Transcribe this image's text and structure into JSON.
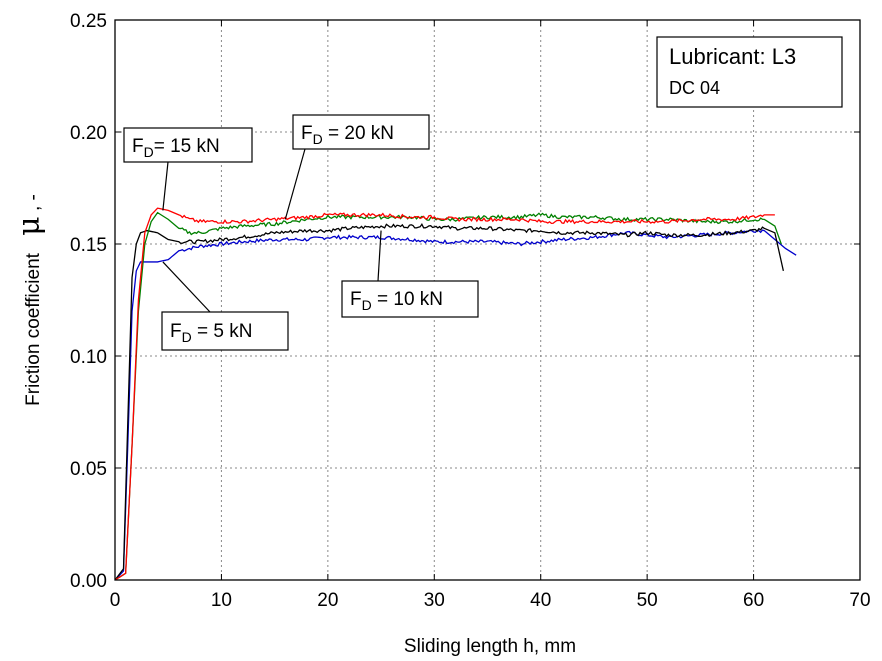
{
  "chart_data": {
    "type": "line",
    "xlabel": "Sliding length h, mm",
    "ylabel_text": "Friction coefficient",
    "ylabel_symbol": "μ",
    "ylabel_unit": ", -",
    "xlim": [
      0,
      70
    ],
    "ylim": [
      0,
      0.25
    ],
    "xticks": [
      "0",
      "10",
      "20",
      "30",
      "40",
      "50",
      "60",
      "70"
    ],
    "yticks": [
      "0.00",
      "0.05",
      "0.10",
      "0.15",
      "0.20",
      "0.25"
    ],
    "grid": true,
    "legend_box": {
      "title": "Lubricant: L3",
      "subtitle": "DC 04",
      "position": "top-right"
    },
    "series": [
      {
        "name": "FD = 5 kN",
        "color": "#0000cc",
        "x": [
          0,
          0.8,
          1.2,
          1.6,
          2.0,
          2.4,
          3,
          4,
          5,
          6,
          8,
          10,
          12,
          15,
          18,
          20,
          22,
          25,
          28,
          30,
          32,
          35,
          38,
          40,
          42,
          45,
          48,
          50,
          52,
          55,
          58,
          60,
          61,
          62,
          63,
          64
        ],
        "y": [
          0,
          0.004,
          0.06,
          0.12,
          0.138,
          0.142,
          0.142,
          0.142,
          0.143,
          0.147,
          0.149,
          0.15,
          0.151,
          0.152,
          0.152,
          0.153,
          0.153,
          0.153,
          0.152,
          0.151,
          0.151,
          0.151,
          0.15,
          0.151,
          0.152,
          0.153,
          0.155,
          0.154,
          0.153,
          0.154,
          0.155,
          0.156,
          0.156,
          0.152,
          0.148,
          0.145
        ]
      },
      {
        "name": "FD = 10 kN",
        "color": "#000000",
        "x": [
          0,
          0.8,
          1.2,
          1.6,
          2.0,
          2.4,
          3,
          4,
          5,
          6,
          8,
          10,
          12,
          15,
          18,
          20,
          22,
          25,
          28,
          30,
          32,
          35,
          38,
          40,
          42,
          45,
          48,
          50,
          52,
          55,
          58,
          60,
          61,
          62,
          62.8
        ],
        "y": [
          0,
          0.005,
          0.07,
          0.135,
          0.15,
          0.155,
          0.156,
          0.155,
          0.152,
          0.151,
          0.151,
          0.152,
          0.153,
          0.155,
          0.156,
          0.156,
          0.157,
          0.158,
          0.158,
          0.158,
          0.157,
          0.157,
          0.156,
          0.156,
          0.155,
          0.155,
          0.154,
          0.155,
          0.154,
          0.154,
          0.155,
          0.156,
          0.157,
          0.155,
          0.138
        ]
      },
      {
        "name": "FD = 15 kN",
        "color": "#008000",
        "x": [
          0,
          1.0,
          1.6,
          2.2,
          2.8,
          3.4,
          4,
          5,
          6,
          7,
          8,
          10,
          12,
          15,
          18,
          20,
          22,
          25,
          28,
          30,
          32,
          35,
          38,
          40,
          42,
          45,
          48,
          50,
          52,
          55,
          58,
          60,
          61,
          62,
          62.6
        ],
        "y": [
          0,
          0.003,
          0.06,
          0.12,
          0.15,
          0.16,
          0.164,
          0.161,
          0.157,
          0.155,
          0.155,
          0.157,
          0.158,
          0.159,
          0.161,
          0.162,
          0.162,
          0.162,
          0.162,
          0.161,
          0.161,
          0.162,
          0.162,
          0.163,
          0.162,
          0.162,
          0.161,
          0.161,
          0.161,
          0.16,
          0.16,
          0.161,
          0.161,
          0.158,
          0.15
        ]
      },
      {
        "name": "FD = 20 kN",
        "color": "#ff0000",
        "x": [
          0,
          1.0,
          1.6,
          2.2,
          2.8,
          3.4,
          4,
          5,
          6,
          7,
          8,
          10,
          12,
          15,
          18,
          20,
          22,
          25,
          28,
          30,
          32,
          35,
          38,
          40,
          42,
          45,
          48,
          50,
          52,
          55,
          58,
          60,
          61,
          62
        ],
        "y": [
          0,
          0.003,
          0.06,
          0.125,
          0.155,
          0.163,
          0.166,
          0.165,
          0.163,
          0.161,
          0.16,
          0.16,
          0.16,
          0.161,
          0.162,
          0.163,
          0.163,
          0.163,
          0.162,
          0.162,
          0.161,
          0.161,
          0.161,
          0.16,
          0.16,
          0.16,
          0.16,
          0.16,
          0.16,
          0.161,
          0.161,
          0.162,
          0.163,
          0.163
        ]
      }
    ],
    "annotations": [
      {
        "id": "fd15",
        "prefix": "F",
        "sub": "D",
        "suffix": "= 15 kN",
        "target_x": 4.5,
        "target_y": 0.165
      },
      {
        "id": "fd20",
        "prefix": "F",
        "sub": "D",
        "suffix": " = 20 kN",
        "target_x": 16.0,
        "target_y": 0.161
      },
      {
        "id": "fd10",
        "prefix": "F",
        "sub": "D",
        "suffix": " = 10 kN",
        "target_x": 25.0,
        "target_y": 0.156
      },
      {
        "id": "fd5",
        "prefix": "F",
        "sub": "D",
        "suffix": " = 5 kN",
        "target_x": 4.5,
        "target_y": 0.142
      }
    ]
  }
}
